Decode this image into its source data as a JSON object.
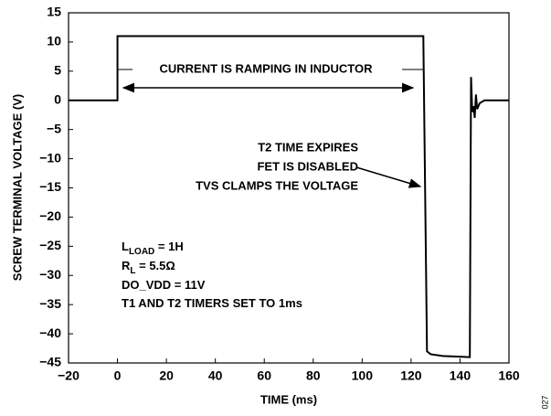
{
  "chart_data": {
    "type": "line",
    "xlabel": "TIME (ms)",
    "ylabel": "SCREW TERMINAL VOLTAGE (V)",
    "xlim": [
      -20,
      160
    ],
    "ylim": [
      -45,
      15
    ],
    "xticks": [
      {
        "value": -20,
        "label": "−20"
      },
      0,
      20,
      40,
      60,
      80,
      100,
      120,
      140,
      160
    ],
    "yticks": [
      {
        "value": -45,
        "label": "−45"
      },
      {
        "value": -40,
        "label": "−40"
      },
      {
        "value": -35,
        "label": "−35"
      },
      {
        "value": -30,
        "label": "−30"
      },
      {
        "value": -25,
        "label": "−25"
      },
      {
        "value": -20,
        "label": "−20"
      },
      {
        "value": -15,
        "label": "−15"
      },
      {
        "value": -10,
        "label": "−10"
      },
      {
        "value": -5,
        "label": "−5"
      },
      0,
      5,
      10,
      15
    ],
    "grid": false,
    "x": [
      -20,
      0,
      0,
      125,
      126.5,
      128,
      133,
      144,
      144.5,
      145,
      145.5,
      146,
      146.5,
      147,
      148,
      150,
      160
    ],
    "series": [
      {
        "color": "#000000",
        "values": [
          0,
          0,
          11,
          11,
          -43,
          -43.5,
          -43.8,
          -44,
          4,
          -2,
          -1,
          -3,
          1,
          -1.5,
          -0.5,
          0,
          0
        ]
      }
    ],
    "annotations": [
      "CURRENT IS RAMPING IN INDUCTOR",
      "T2 TIME EXPIRES",
      "FET IS DISABLED",
      "TVS CLAMPS THE VOLTAGE"
    ],
    "notes": [
      {
        "main": "L",
        "sub": "LOAD",
        "tail": " = 1H"
      },
      {
        "main": "R",
        "sub": "L",
        "tail": " = 5.5Ω"
      },
      {
        "main": "DO_VDD = 11V"
      },
      {
        "main": "T1 AND T2 TIMERS SET TO 1ms"
      }
    ],
    "figure_id": "027"
  }
}
